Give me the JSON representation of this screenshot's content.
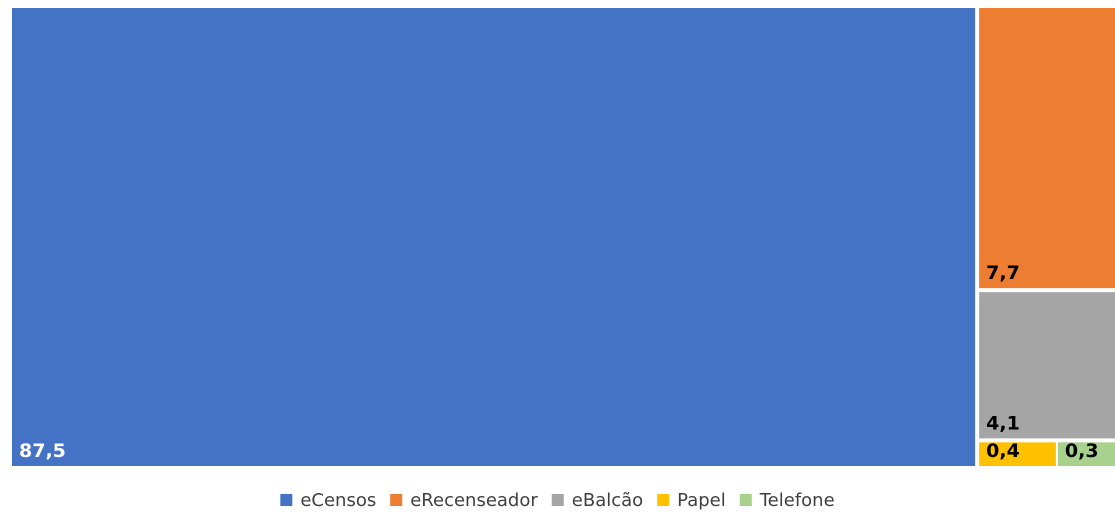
{
  "chart_data": {
    "type": "treemap",
    "title": "",
    "legend_position": "bottom",
    "series": [
      {
        "name": "eCensos",
        "value": 87.5,
        "label": "87,5",
        "color": "#4472C4",
        "label_color": "#ffffff"
      },
      {
        "name": "eRecenseador",
        "value": 7.7,
        "label": "7,7",
        "color": "#ED7D31",
        "label_color": "#000000"
      },
      {
        "name": "eBalcão",
        "value": 4.1,
        "label": "4,1",
        "color": "#A5A5A5",
        "label_color": "#000000"
      },
      {
        "name": "Papel",
        "value": 0.4,
        "label": "0,4",
        "color": "#FFC000",
        "label_color": "#000000"
      },
      {
        "name": "Telefone",
        "value": 0.3,
        "label": "0,3",
        "color": "#A9D18E",
        "label_color": "#000000"
      }
    ]
  }
}
